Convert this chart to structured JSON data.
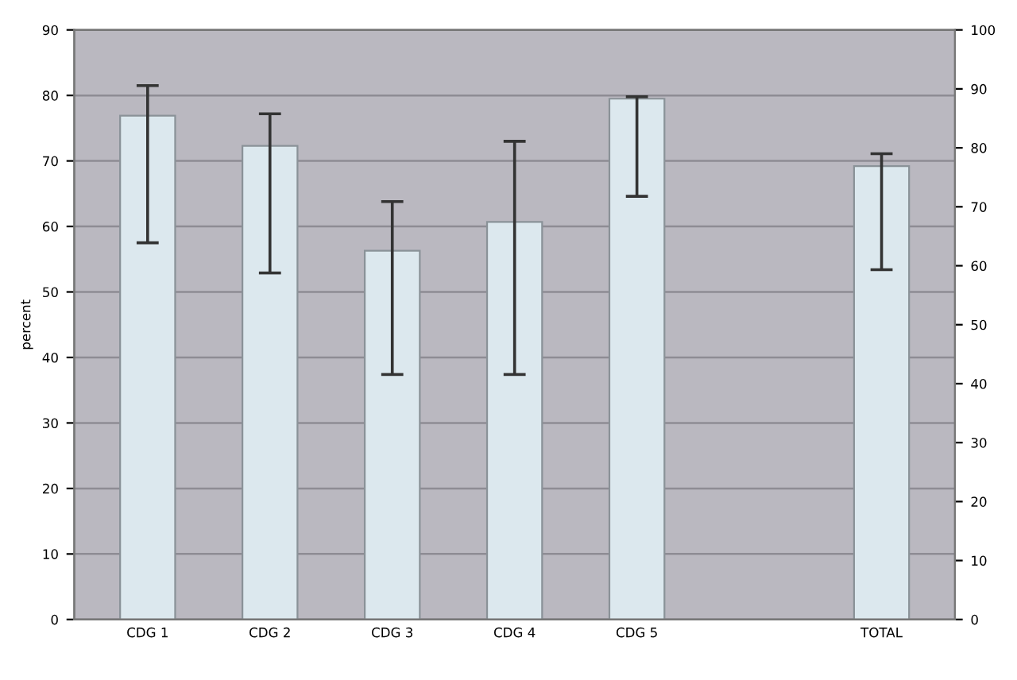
{
  "chart_data": {
    "type": "bar",
    "ylabel": "percent",
    "categories": [
      "CDG 1",
      "CDG 2",
      "CDG 3",
      "CDG 4",
      "CDG 5",
      null,
      "TOTAL"
    ],
    "values": [
      76.9,
      72.3,
      56.3,
      60.7,
      79.5,
      null,
      69.2
    ],
    "errors": [
      [
        57.5,
        81.5
      ],
      [
        52.9,
        77.2
      ],
      [
        37.4,
        63.8
      ],
      [
        37.4,
        73.0
      ],
      [
        64.6,
        79.8
      ],
      null,
      [
        53.4,
        71.1
      ]
    ],
    "color": "#dce8ee",
    "ylim": [
      0,
      90
    ],
    "yticks": [
      0,
      10,
      20,
      30,
      40,
      50,
      60,
      70,
      80,
      90
    ],
    "y2lim": [
      0,
      100
    ],
    "y2ticks": [
      0,
      10,
      20,
      30,
      40,
      50,
      60,
      70,
      80,
      90,
      100
    ],
    "grid": "y"
  }
}
